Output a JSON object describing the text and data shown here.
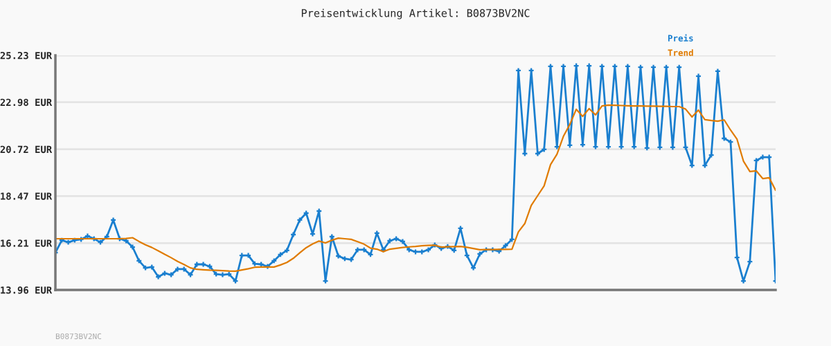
{
  "chart_data": {
    "type": "line",
    "title": "Preisentwicklung Artikel: B0873BV2NC",
    "categories": [
      null,
      null,
      null,
      null,
      null,
      null,
      null,
      null,
      null,
      null,
      null,
      null,
      null,
      null,
      null,
      null,
      null,
      null,
      null,
      null,
      null,
      null,
      null,
      null,
      null,
      null,
      null,
      null,
      null,
      null,
      null,
      null,
      null,
      null,
      null,
      null,
      null,
      null,
      null,
      null,
      null,
      null,
      null,
      null,
      null,
      null,
      null,
      null,
      null,
      null,
      null,
      null,
      null,
      null,
      null,
      null,
      null,
      null,
      null,
      null,
      null,
      null,
      null,
      null,
      null,
      null,
      null,
      null,
      null,
      null,
      null,
      null,
      null,
      null,
      null,
      null,
      null,
      null,
      null,
      null,
      null,
      null,
      null,
      null,
      null,
      null,
      null,
      null,
      null,
      null,
      null,
      null,
      null,
      null,
      null,
      null,
      null,
      null,
      null,
      null,
      null,
      null,
      null,
      null,
      null,
      null,
      null,
      null,
      null,
      null,
      null,
      null,
      null
    ],
    "series": [
      {
        "name": "Preis",
        "color": "#1a7fcf",
        "marker": "cross",
        "values": [
          15.75,
          16.35,
          16.25,
          16.35,
          16.39,
          16.55,
          16.42,
          16.25,
          16.52,
          17.32,
          16.42,
          16.32,
          16.02,
          15.36,
          15.02,
          15.06,
          14.59,
          14.76,
          14.69,
          14.96,
          14.96,
          14.69,
          15.19,
          15.19,
          15.09,
          14.72,
          14.69,
          14.72,
          14.39,
          15.62,
          15.62,
          15.22,
          15.19,
          15.09,
          15.36,
          15.66,
          15.86,
          16.62,
          17.32,
          17.65,
          16.65,
          17.75,
          14.39,
          16.52,
          15.59,
          15.46,
          15.42,
          15.89,
          15.89,
          15.66,
          16.69,
          15.89,
          16.32,
          16.42,
          16.29,
          15.89,
          15.79,
          15.79,
          15.89,
          16.12,
          15.95,
          16.05,
          15.86,
          16.92,
          15.62,
          15.02,
          15.69,
          15.89,
          15.89,
          15.82,
          16.09,
          16.39,
          24.5,
          20.51,
          24.5,
          20.51,
          20.71,
          24.7,
          20.84,
          24.7,
          20.91,
          24.73,
          20.94,
          24.73,
          20.84,
          24.7,
          20.84,
          24.7,
          20.84,
          24.7,
          20.84,
          24.66,
          20.78,
          24.66,
          20.81,
          24.66,
          20.81,
          24.66,
          20.81,
          19.94,
          24.23,
          19.94,
          20.44,
          24.47,
          21.24,
          21.07,
          15.52,
          14.39,
          15.32,
          20.18,
          20.34,
          20.34,
          14.39
        ]
      },
      {
        "name": "Trend",
        "color": "#e07b00",
        "marker": "none",
        "values": [
          16.42,
          16.42,
          16.42,
          16.42,
          16.42,
          16.42,
          16.42,
          16.42,
          16.42,
          16.42,
          16.42,
          16.43,
          16.47,
          16.29,
          16.13,
          16.0,
          15.84,
          15.67,
          15.51,
          15.33,
          15.18,
          15.02,
          14.95,
          14.93,
          14.91,
          14.9,
          14.89,
          14.87,
          14.86,
          14.92,
          14.98,
          15.05,
          15.06,
          15.06,
          15.06,
          15.16,
          15.28,
          15.48,
          15.74,
          15.99,
          16.17,
          16.31,
          16.22,
          16.35,
          16.45,
          16.42,
          16.39,
          16.28,
          16.16,
          15.97,
          15.92,
          15.8,
          15.92,
          15.96,
          16.0,
          16.03,
          16.05,
          16.08,
          16.1,
          16.11,
          16.02,
          16.03,
          16.04,
          16.05,
          16.01,
          15.95,
          15.89,
          15.9,
          15.9,
          15.91,
          15.91,
          15.92,
          16.75,
          17.15,
          18.02,
          18.49,
          18.96,
          19.98,
          20.48,
          21.34,
          21.91,
          22.64,
          22.3,
          22.67,
          22.37,
          22.8,
          22.84,
          22.83,
          22.82,
          22.81,
          22.8,
          22.8,
          22.79,
          22.79,
          22.78,
          22.78,
          22.77,
          22.77,
          22.65,
          22.27,
          22.6,
          22.14,
          22.1,
          22.07,
          22.13,
          21.64,
          21.2,
          20.15,
          19.65,
          19.68,
          19.31,
          19.35,
          18.75
        ]
      }
    ],
    "ylim": [
      13.96,
      25.23
    ],
    "yticks": [
      {
        "value": 13.96,
        "label": "13.96 EUR"
      },
      {
        "value": 16.21,
        "label": "16.21 EUR"
      },
      {
        "value": 18.47,
        "label": "18.47 EUR"
      },
      {
        "value": 20.72,
        "label": "20.72 EUR"
      },
      {
        "value": 22.98,
        "label": "22.98 EUR"
      },
      {
        "value": 25.23,
        "label": "25.23 EUR"
      }
    ],
    "tick_labels": "y",
    "grid": "y",
    "line_style": "solid",
    "annotations": [
      "B0873BV2NC"
    ]
  }
}
